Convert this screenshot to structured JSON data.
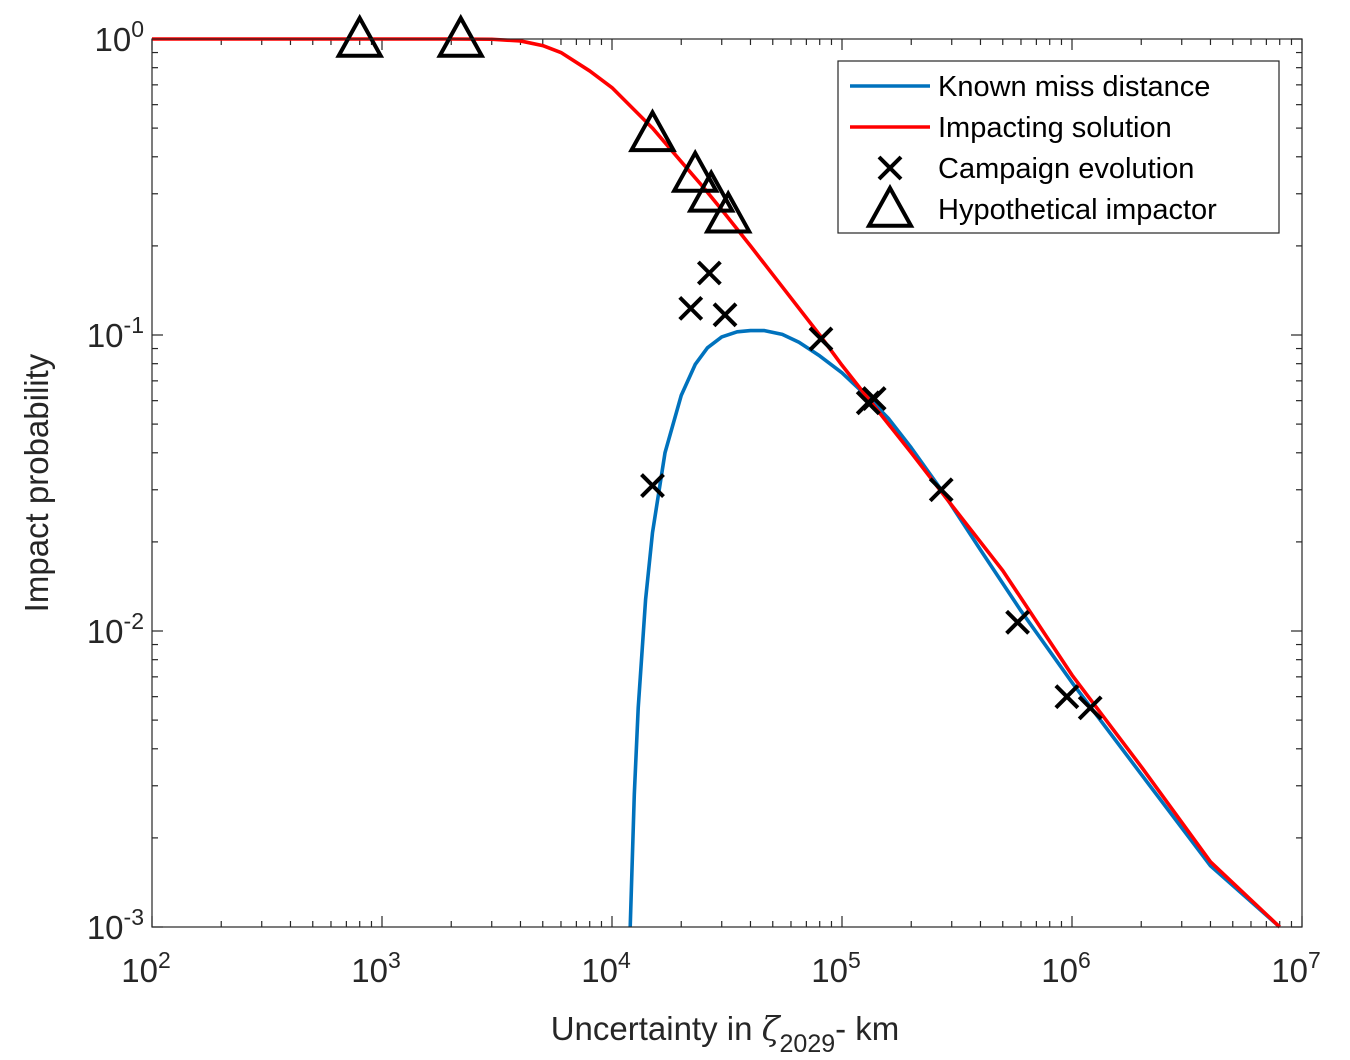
{
  "chart_data": {
    "type": "line",
    "xscale": "log",
    "yscale": "log",
    "xlim": [
      100,
      10000000
    ],
    "ylim": [
      0.001,
      1
    ],
    "grid": false,
    "legend_position": "top-right",
    "xlabel": {
      "prefix": "Uncertainty in ",
      "symbol": "ζ",
      "subscript": "2029",
      "suffix": "- km"
    },
    "ylabel": "Impact probability",
    "x_ticks": [
      {
        "value": 100,
        "base": "10",
        "exp": "2"
      },
      {
        "value": 1000,
        "base": "10",
        "exp": "3"
      },
      {
        "value": 10000,
        "base": "10",
        "exp": "4"
      },
      {
        "value": 100000,
        "base": "10",
        "exp": "5"
      },
      {
        "value": 1000000,
        "base": "10",
        "exp": "6"
      },
      {
        "value": 10000000,
        "base": "10",
        "exp": "7"
      }
    ],
    "y_ticks": [
      {
        "value": 0.001,
        "base": "10",
        "exp": "-3"
      },
      {
        "value": 0.01,
        "base": "10",
        "exp": "-2"
      },
      {
        "value": 0.1,
        "base": "10",
        "exp": "-1"
      },
      {
        "value": 1,
        "base": "10",
        "exp": "0"
      }
    ],
    "series": [
      {
        "name": "Known miss distance",
        "kind": "line",
        "color": "#0072BD",
        "points": [
          [
            12000,
            0.001
          ],
          [
            12500,
            0.0028
          ],
          [
            13000,
            0.0055
          ],
          [
            14000,
            0.0128
          ],
          [
            15000,
            0.0215
          ],
          [
            17000,
            0.04
          ],
          [
            20000,
            0.0625
          ],
          [
            23000,
            0.0795
          ],
          [
            26000,
            0.0905
          ],
          [
            30000,
            0.0985
          ],
          [
            35000,
            0.1025
          ],
          [
            40000,
            0.1035
          ],
          [
            46000,
            0.1035
          ],
          [
            55000,
            0.1005
          ],
          [
            65000,
            0.0945
          ],
          [
            80000,
            0.085
          ],
          [
            100000,
            0.0745
          ],
          [
            130000,
            0.0615
          ],
          [
            160000,
            0.052
          ],
          [
            200000,
            0.0416
          ],
          [
            270000,
            0.03
          ],
          [
            400000,
            0.0188
          ],
          [
            600000,
            0.0117
          ],
          [
            1000000,
            0.0067
          ],
          [
            2000000,
            0.00328
          ],
          [
            4000000,
            0.00161
          ],
          [
            8000000,
            0.001
          ]
        ]
      },
      {
        "name": "Impacting solution",
        "kind": "line",
        "color": "#FF0000",
        "points": [
          [
            100,
            1.0
          ],
          [
            1000,
            1.0
          ],
          [
            2000,
            1.0
          ],
          [
            3000,
            0.998
          ],
          [
            4000,
            0.985
          ],
          [
            5000,
            0.95
          ],
          [
            6000,
            0.9
          ],
          [
            8000,
            0.78
          ],
          [
            10000,
            0.685
          ],
          [
            15000,
            0.5
          ],
          [
            20000,
            0.385
          ],
          [
            25000,
            0.315
          ],
          [
            30000,
            0.265
          ],
          [
            40000,
            0.2
          ],
          [
            50000,
            0.16
          ],
          [
            80000,
            0.1
          ],
          [
            100000,
            0.079
          ],
          [
            150000,
            0.053
          ],
          [
            200000,
            0.04
          ],
          [
            300000,
            0.0266
          ],
          [
            500000,
            0.016
          ],
          [
            1000000,
            0.0071
          ],
          [
            2000000,
            0.00348
          ],
          [
            4000000,
            0.00166
          ],
          [
            8000000,
            0.001
          ]
        ]
      },
      {
        "name": "Campaign evolution",
        "kind": "marker",
        "marker": "x",
        "color": "#000000",
        "points": [
          [
            15000,
            0.031
          ],
          [
            22000,
            0.123
          ],
          [
            26500,
            0.162
          ],
          [
            31000,
            0.117
          ],
          [
            81000,
            0.097
          ],
          [
            130000,
            0.059
          ],
          [
            138000,
            0.061
          ],
          [
            270000,
            0.03
          ],
          [
            580000,
            0.0107
          ],
          [
            950000,
            0.006
          ],
          [
            1200000,
            0.0055
          ]
        ]
      },
      {
        "name": "Hypothetical impactor",
        "kind": "marker",
        "marker": "triangle",
        "color": "#000000",
        "points": [
          [
            800,
            1.0
          ],
          [
            2200,
            1.0
          ],
          [
            15000,
            0.48
          ],
          [
            23000,
            0.35
          ],
          [
            27000,
            0.3
          ],
          [
            32000,
            0.255
          ]
        ]
      }
    ]
  }
}
